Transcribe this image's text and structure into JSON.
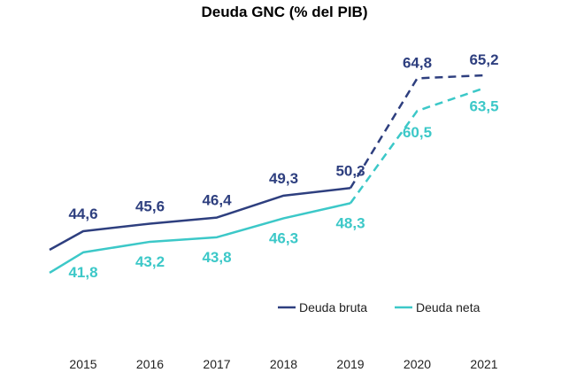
{
  "chart_data": {
    "type": "line",
    "title": "Deuda GNC (% del PIB)",
    "xlabel": "",
    "ylabel": "",
    "x": [
      "2015",
      "2016",
      "2017",
      "2018",
      "2019",
      "2020",
      "2021"
    ],
    "projected_from_index": 4,
    "ylim": [
      35,
      70
    ],
    "grid": false,
    "legend_position": "bottom-right",
    "series": [
      {
        "name": "Deuda bruta",
        "color": "#2e3f7f",
        "values": [
          44.6,
          45.6,
          46.4,
          49.3,
          50.3,
          64.8,
          65.2
        ],
        "labels": [
          "44,6",
          "45,6",
          "46,4",
          "49,3",
          "50,3",
          "64,8",
          "65,2"
        ]
      },
      {
        "name": "Deuda neta",
        "color": "#3cc8c8",
        "values": [
          41.8,
          43.2,
          43.8,
          46.3,
          48.3,
          60.5,
          63.5
        ],
        "labels": [
          "41,8",
          "43,2",
          "43,8",
          "46,3",
          "48,3",
          "60,5",
          "63,5"
        ]
      }
    ]
  }
}
